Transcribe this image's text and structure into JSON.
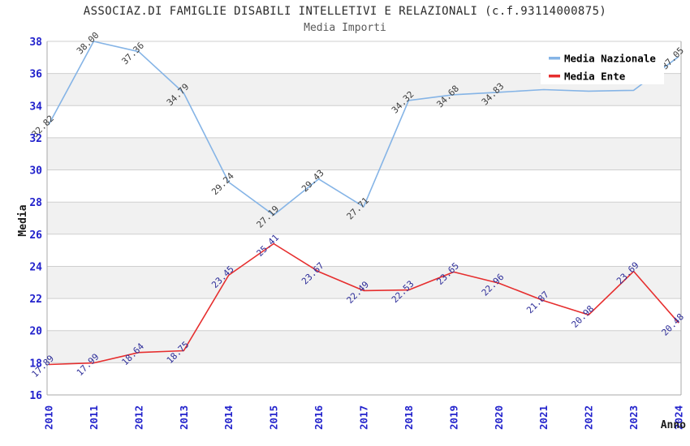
{
  "title": "ASSOCIAZ.DI FAMIGLIE DISABILI INTELLETIVI E RELAZIONALI (c.f.93114000875)",
  "subtitle": "Media Importi",
  "colors": {
    "national_line": "#85b4e6",
    "ente_line": "#e62e2e",
    "tick_label_text": "#2222cc",
    "national_point_label_text": "#3d3d3d",
    "ente_point_label_text": "#2d2d99",
    "band_fill": "#f1f1f1",
    "gridline": "#cfcfcf",
    "axis_line": "#a8a8a8",
    "axis_title_text": "#1a1a1a",
    "legend_background": "#ffffff",
    "legend_text": "#000000"
  },
  "legend": {
    "items": [
      {
        "label": "Media Nazionale",
        "color": "#85b4e6"
      },
      {
        "label": "Media Ente",
        "color": "#e62e2e"
      }
    ]
  },
  "chart_data": {
    "type": "line",
    "title": "ASSOCIAZ.DI FAMIGLIE DISABILI INTELLETIVI E RELAZIONALI (c.f.93114000875)",
    "subtitle": "Media Importi",
    "xlabel": "Anno",
    "ylabel": "Media",
    "categories": [
      "2010",
      "2011",
      "2012",
      "2013",
      "2014",
      "2015",
      "2016",
      "2017",
      "2018",
      "2019",
      "2020",
      "2021",
      "2022",
      "2023",
      "2024"
    ],
    "y_ticks": [
      16,
      18,
      20,
      22,
      24,
      26,
      28,
      30,
      32,
      34,
      36,
      38
    ],
    "ylim": [
      16,
      38
    ],
    "grid": "horizontal-only",
    "background_banding": "alternating gray bands every 2 units",
    "legend_position": "top-right-inside",
    "series": [
      {
        "name": "Media Nazionale",
        "color": "#85b4e6",
        "label_color": "#3d3d3d",
        "values": [
          32.82,
          38.0,
          37.36,
          34.79,
          29.24,
          27.19,
          29.43,
          27.71,
          34.32,
          34.68,
          34.83,
          35.0,
          34.9,
          34.95,
          37.05
        ],
        "point_labels": [
          "32.82",
          "38.00",
          "37.36",
          "34.79",
          "29.24",
          "27.19",
          "29.43",
          "27.71",
          "34.32",
          "34.68",
          "34.83",
          "",
          "",
          "",
          "37.05"
        ]
      },
      {
        "name": "Media Ente",
        "color": "#e62e2e",
        "label_color": "#2d2d99",
        "values": [
          17.89,
          17.99,
          18.64,
          18.75,
          23.45,
          25.41,
          23.67,
          22.49,
          22.53,
          23.65,
          22.96,
          21.87,
          20.98,
          23.69,
          20.48
        ],
        "point_labels": [
          "17.89",
          "17.99",
          "18.64",
          "18.75",
          "23.45",
          "25.41",
          "23.67",
          "22.49",
          "22.53",
          "23.65",
          "22.96",
          "21.87",
          "20.98",
          "23.69",
          "20.48"
        ]
      }
    ]
  }
}
